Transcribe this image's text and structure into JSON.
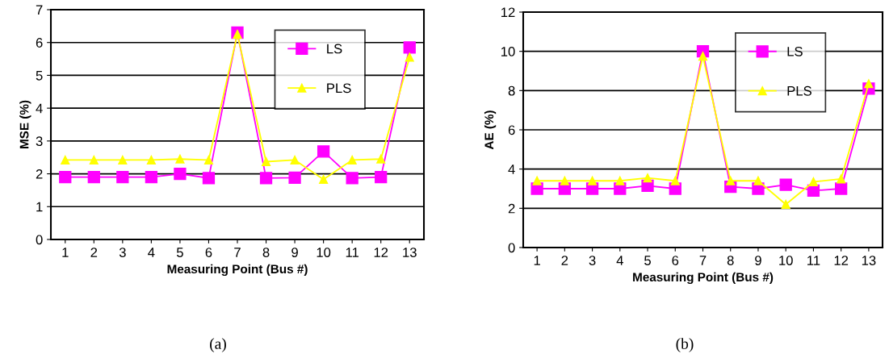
{
  "chart_data": [
    {
      "type": "line",
      "xlabel": "Measuring Point (Bus #)",
      "ylabel": "MSE (%)",
      "categories": [
        "1",
        "2",
        "3",
        "4",
        "5",
        "6",
        "7",
        "8",
        "9",
        "10",
        "11",
        "12",
        "13"
      ],
      "ylim": [
        0,
        7
      ],
      "yticks": [
        0,
        1,
        2,
        3,
        4,
        5,
        6,
        7
      ],
      "grid": "y",
      "legend": "top right",
      "annotations": [
        "(a)"
      ],
      "series": [
        {
          "name": "LS",
          "color": "#ff00ff",
          "marker": "square",
          "values": [
            1.9,
            1.9,
            1.9,
            1.9,
            2.0,
            1.87,
            6.3,
            1.87,
            1.88,
            2.68,
            1.87,
            1.9,
            5.85
          ]
        },
        {
          "name": "PLS",
          "color": "#ffff00",
          "marker": "triangle",
          "values": [
            2.42,
            2.42,
            2.42,
            2.42,
            2.45,
            2.42,
            6.25,
            2.37,
            2.42,
            1.83,
            2.42,
            2.45,
            5.55
          ]
        }
      ]
    },
    {
      "type": "line",
      "xlabel": "Measuring Point (Bus #)",
      "ylabel": "AE (%)",
      "categories": [
        "1",
        "2",
        "3",
        "4",
        "5",
        "6",
        "7",
        "8",
        "9",
        "10",
        "11",
        "12",
        "13"
      ],
      "ylim": [
        0,
        12
      ],
      "yticks": [
        0,
        2,
        4,
        6,
        8,
        10,
        12
      ],
      "grid": "y",
      "legend": "top right",
      "annotations": [
        "(b)"
      ],
      "series": [
        {
          "name": "LS",
          "color": "#ff00ff",
          "marker": "square",
          "values": [
            3.0,
            3.0,
            3.0,
            3.0,
            3.15,
            3.0,
            10.0,
            3.1,
            3.0,
            3.2,
            2.9,
            3.0,
            8.1
          ]
        },
        {
          "name": "PLS",
          "color": "#ffff00",
          "marker": "triangle",
          "values": [
            3.4,
            3.4,
            3.4,
            3.4,
            3.55,
            3.4,
            9.75,
            3.4,
            3.4,
            2.2,
            3.35,
            3.5,
            8.35
          ]
        }
      ]
    }
  ]
}
